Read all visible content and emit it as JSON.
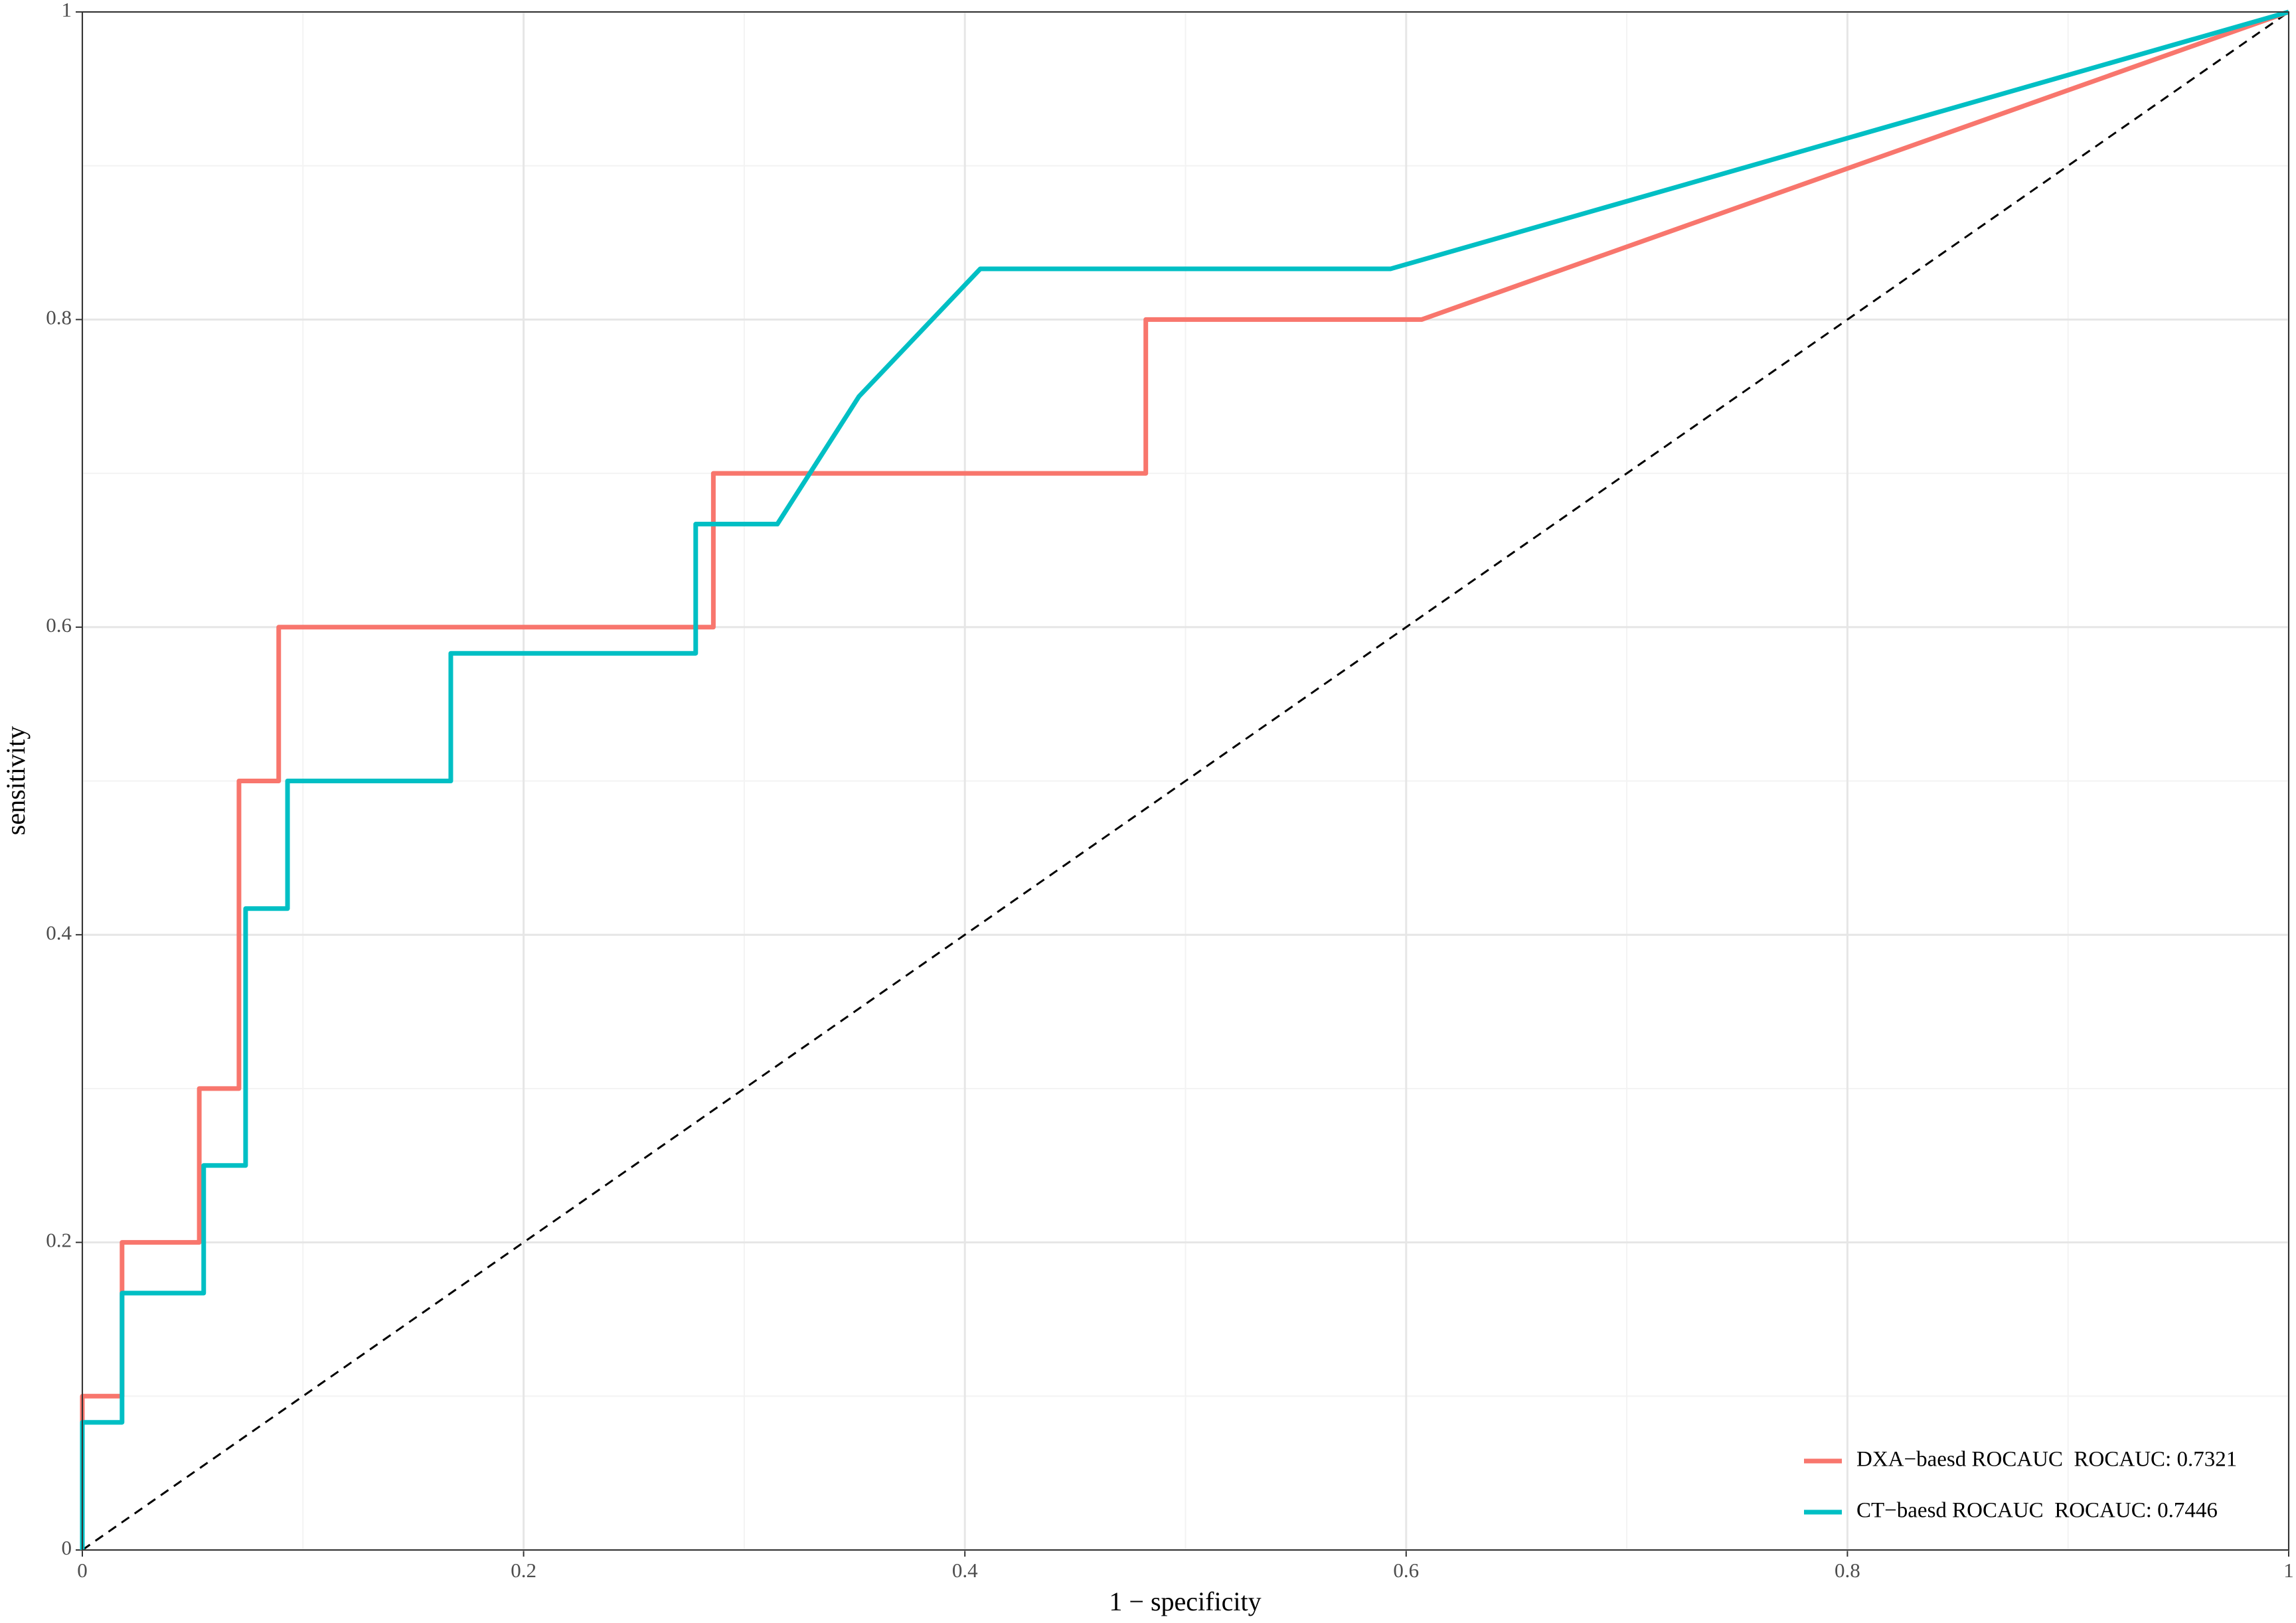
{
  "chart_data": {
    "type": "line",
    "x_label": "1 − specificity",
    "y_label": "sensitivity",
    "xlim": [
      0,
      1
    ],
    "ylim": [
      0,
      1
    ],
    "xticks": [
      0,
      0.2,
      0.4,
      0.6,
      0.8,
      1
    ],
    "yticks": [
      0,
      0.2,
      0.4,
      0.6,
      0.8,
      1
    ],
    "grid": true,
    "legend": "bottom-right",
    "series": [
      {
        "name": "DXA−baesd ROCAUC  ROCAUC: 0.7321",
        "color": "#F8766D",
        "x": [
          0,
          0,
          0.018,
          0.018,
          0.053,
          0.053,
          0.071,
          0.071,
          0.089,
          0.089,
          0.286,
          0.286,
          0.482,
          0.482,
          0.607,
          1
        ],
        "values": [
          0,
          0.1,
          0.1,
          0.2,
          0.2,
          0.3,
          0.3,
          0.5,
          0.5,
          0.6,
          0.6,
          0.7,
          0.7,
          0.8,
          0.8,
          1
        ]
      },
      {
        "name": "CT−baesd ROCAUC  ROCAUC: 0.7446",
        "color": "#00BFC4",
        "x": [
          0,
          0,
          0.018,
          0.018,
          0.055,
          0.055,
          0.074,
          0.074,
          0.093,
          0.093,
          0.167,
          0.167,
          0.278,
          0.278,
          0.315,
          0.352,
          0.407,
          0.593,
          1
        ],
        "values": [
          0,
          0.083,
          0.083,
          0.167,
          0.167,
          0.25,
          0.25,
          0.417,
          0.417,
          0.5,
          0.5,
          0.583,
          0.583,
          0.667,
          0.667,
          0.75,
          0.833,
          0.833,
          1
        ]
      }
    ]
  }
}
